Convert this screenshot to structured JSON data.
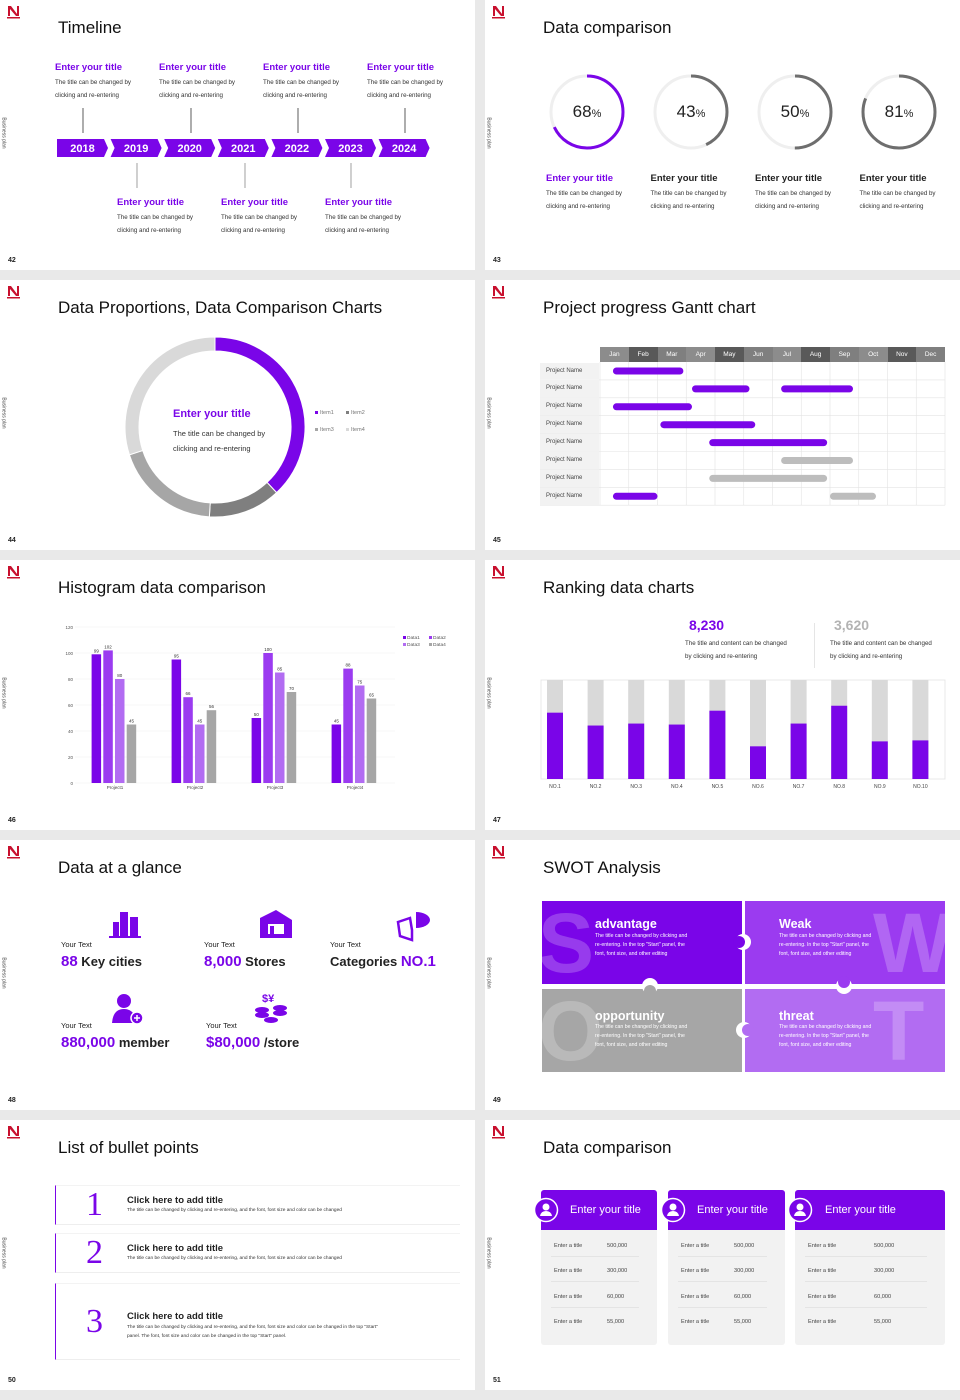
{
  "colors": {
    "accent": "#7a05e8",
    "accent2": "#9b3bf0",
    "accent3": "#b26cf2",
    "gray": "#a6a6a6",
    "lightgray": "#d9d9d9",
    "darkgray": "#6e6e6e"
  },
  "common": {
    "side_label": "Business plan",
    "logo_icon": "n-logo-icon"
  },
  "slides": {
    "timeline": {
      "title": "Timeline",
      "page": "42",
      "years": [
        "2018",
        "2019",
        "2020",
        "2021",
        "2022",
        "2023",
        "2024"
      ],
      "top_items": [
        {
          "title": "Enter your title",
          "desc1": "The title can be changed by",
          "desc2": "clicking and re-entering"
        },
        {
          "title": "Enter your title",
          "desc1": "The title can be changed by",
          "desc2": "clicking and re-entering"
        },
        {
          "title": "Enter your title",
          "desc1": "The title can be changed by",
          "desc2": "clicking and re-entering"
        },
        {
          "title": "Enter your title",
          "desc1": "The title can be changed by",
          "desc2": "clicking and re-entering"
        }
      ],
      "bottom_items": [
        {
          "title": "Enter your title",
          "desc1": "The title can be changed by",
          "desc2": "clicking and re-entering"
        },
        {
          "title": "Enter your title",
          "desc1": "The title can be changed by",
          "desc2": "clicking and re-entering"
        },
        {
          "title": "Enter your title",
          "desc1": "The title can be changed by",
          "desc2": "clicking and re-entering"
        }
      ]
    },
    "rings": {
      "title": "Data comparison",
      "page": "43",
      "items": [
        {
          "value": 68,
          "unit": "%",
          "title": "Enter your title",
          "desc1": "The title can be changed by",
          "desc2": "clicking and re-entering",
          "highlight": true
        },
        {
          "value": 43,
          "unit": "%",
          "title": "Enter your title",
          "desc1": "The title can be changed by",
          "desc2": "clicking and re-entering",
          "highlight": false
        },
        {
          "value": 50,
          "unit": "%",
          "title": "Enter your title",
          "desc1": "The title can be changed by",
          "desc2": "clicking and re-entering",
          "highlight": false
        },
        {
          "value": 81,
          "unit": "%",
          "title": "Enter your title",
          "desc1": "The title can be changed by",
          "desc2": "clicking and re-entering",
          "highlight": false
        }
      ]
    },
    "donut": {
      "title": "Data Proportions, Data Comparison Charts",
      "page": "44",
      "center_title": "Enter your title",
      "center_desc1": "The title can be changed by",
      "center_desc2": "clicking and re-entering",
      "chart_data": {
        "type": "pie",
        "categories": [
          "Item1",
          "Item2",
          "Item3",
          "Item4"
        ],
        "values": [
          38,
          13,
          19,
          30
        ],
        "colors": [
          "#7a05e8",
          "#7f7f7f",
          "#a6a6a6",
          "#d9d9d9"
        ],
        "legend": "right"
      }
    },
    "gantt": {
      "title": "Project progress Gantt chart",
      "page": "45",
      "chart_data": {
        "type": "bar",
        "months": [
          "Jan",
          "Feb",
          "Mar",
          "Apr",
          "May",
          "Jun",
          "Jul",
          "Aug",
          "Sep",
          "Oct",
          "Nov",
          "Dec"
        ],
        "rows": [
          {
            "label": "Project Name",
            "bars": [
              {
                "start": 0.45,
                "end": 2.9,
                "color": "accent"
              }
            ]
          },
          {
            "label": "Project Name",
            "bars": [
              {
                "start": 3.2,
                "end": 5.2,
                "color": "accent"
              },
              {
                "start": 6.3,
                "end": 8.8,
                "color": "accent"
              }
            ]
          },
          {
            "label": "Project Name",
            "bars": [
              {
                "start": 0.45,
                "end": 3.2,
                "color": "accent"
              }
            ]
          },
          {
            "label": "Project Name",
            "bars": [
              {
                "start": 2.1,
                "end": 5.4,
                "color": "accent"
              }
            ]
          },
          {
            "label": "Project Name",
            "bars": [
              {
                "start": 3.8,
                "end": 7.9,
                "color": "accent"
              }
            ]
          },
          {
            "label": "Project Name",
            "bars": [
              {
                "start": 6.3,
                "end": 8.8,
                "color": "gray"
              }
            ]
          },
          {
            "label": "Project Name",
            "bars": [
              {
                "start": 3.8,
                "end": 7.9,
                "color": "gray"
              }
            ]
          },
          {
            "label": "Project Name",
            "bars": [
              {
                "start": 0.45,
                "end": 2.0,
                "color": "accent"
              },
              {
                "start": 8.0,
                "end": 9.6,
                "color": "gray"
              }
            ]
          }
        ]
      }
    },
    "histogram": {
      "title": "Histogram data comparison",
      "page": "46",
      "chart_data": {
        "type": "bar",
        "categories": [
          "Project1",
          "Project2",
          "Project3",
          "Project4"
        ],
        "series": [
          {
            "name": "Data1",
            "values": [
              99,
              95,
              50,
              45
            ],
            "color": "#7a05e8"
          },
          {
            "name": "Data2",
            "values": [
              102,
              66,
              100,
              88
            ],
            "color": "#9b3bf0"
          },
          {
            "name": "Data3",
            "values": [
              80,
              45,
              85,
              75
            ],
            "color": "#b26cf2"
          },
          {
            "name": "Data4",
            "values": [
              45,
              56,
              70,
              65
            ],
            "color": "#a6a6a6"
          }
        ],
        "ylim": [
          0,
          120
        ],
        "yticks": [
          0,
          20,
          40,
          60,
          80,
          100,
          120
        ],
        "grid": true,
        "legend": "top-right"
      }
    },
    "ranking": {
      "title": "Ranking data charts",
      "page": "47",
      "stat1": {
        "value": "8,230",
        "desc1": "The title and content can be changed",
        "desc2": "by clicking and re-entering"
      },
      "stat2": {
        "value": "3,620",
        "desc1": "The title and content can be changed",
        "desc2": "by clicking and re-entering"
      },
      "chart_data": {
        "type": "bar",
        "categories": [
          "NO.1",
          "NO.2",
          "NO.3",
          "NO.4",
          "NO.5",
          "NO.6",
          "NO.7",
          "NO.8",
          "NO.9",
          "NO.10"
        ],
        "values": [
          0.67,
          0.54,
          0.56,
          0.55,
          0.69,
          0.33,
          0.56,
          0.74,
          0.38,
          0.39
        ],
        "ylim": [
          0,
          1
        ]
      }
    },
    "glance": {
      "title": "Data at a glance",
      "page": "48",
      "items": [
        {
          "label": "Your Text",
          "number": "88",
          "unit": " Key cities",
          "icon": "city-buildings-icon"
        },
        {
          "label": "Your Text",
          "number": "8,000",
          "unit": " Stores",
          "icon": "store-icon"
        },
        {
          "label": "Your Text",
          "pre": "Categories ",
          "number": "NO.1",
          "unit": "",
          "icon": "pie-chart-icon"
        },
        {
          "label": "Your Text",
          "number": "880,000",
          "unit": " member",
          "icon": "add-member-icon"
        },
        {
          "label": "Your Text",
          "number": "$80,000",
          "unit": " /store",
          "icon": "coins-icon"
        }
      ]
    },
    "swot": {
      "title": "SWOT Analysis",
      "page": "49",
      "quadrants": [
        {
          "letter": "S",
          "title": "advantage",
          "desc1": "The title can be changed by clicking and",
          "desc2": "re-entering. In the top \"Start\" panel, the",
          "desc3": "font, font size, and other editing",
          "color": "#7a05e8"
        },
        {
          "letter": "W",
          "title": "Weak",
          "desc1": "The title can be changed by clicking and",
          "desc2": "re-entering. In the top \"Start\" panel, the",
          "desc3": "font, font size, and other editing",
          "color": "#9b3bf0"
        },
        {
          "letter": "O",
          "title": "opportunity",
          "desc1": "The title can be changed by clicking and",
          "desc2": "re-entering. In the top \"Start\" panel, the",
          "desc3": "font, font size, and other editing",
          "color": "#a6a6a6"
        },
        {
          "letter": "T",
          "title": "threat",
          "desc1": "The title can be changed by clicking and",
          "desc2": "re-entering. In the top \"Start\" panel, the",
          "desc3": "font, font size, and other editing",
          "color": "#b26cf2"
        }
      ]
    },
    "bullets": {
      "title": "List of bullet points",
      "page": "50",
      "items": [
        {
          "num": "1",
          "title": "Click here to add title",
          "desc1": "The title can be changed by clicking and re-entering, and the font, font size and color can be changed",
          "desc2": ""
        },
        {
          "num": "2",
          "title": "Click here to add title",
          "desc1": "The title can be changed by clicking and re-entering, and the font, font size and color can be changed",
          "desc2": ""
        },
        {
          "num": "3",
          "title": "Click here to add title",
          "desc1": "The title can be changed by clicking and re-entering, and the font, font size and color can be changed in the top \"Start\"",
          "desc2": "panel. The font, font size and color can be changed in the top \"Start\" panel."
        }
      ]
    },
    "cards": {
      "title": "Data comparison",
      "page": "51",
      "cards": [
        {
          "title": "Enter your title",
          "icon": "tablet-user-icon",
          "rows": [
            [
              "Enter a title",
              "500,000"
            ],
            [
              "Enter a title",
              "300,000"
            ],
            [
              "Enter a title",
              "60,000"
            ],
            [
              "Enter a title",
              "55,000"
            ]
          ]
        },
        {
          "title": "Enter your title",
          "icon": "user-gear-icon",
          "rows": [
            [
              "Enter a title",
              "500,000"
            ],
            [
              "Enter a title",
              "300,000"
            ],
            [
              "Enter a title",
              "60,000"
            ],
            [
              "Enter a title",
              "55,000"
            ]
          ]
        },
        {
          "title": "Enter your title",
          "icon": "user-group-icon",
          "rows": [
            [
              "Enter a title",
              "500,000"
            ],
            [
              "Enter a title",
              "300,000"
            ],
            [
              "Enter a title",
              "60,000"
            ],
            [
              "Enter a title",
              "55,000"
            ]
          ]
        }
      ]
    }
  }
}
